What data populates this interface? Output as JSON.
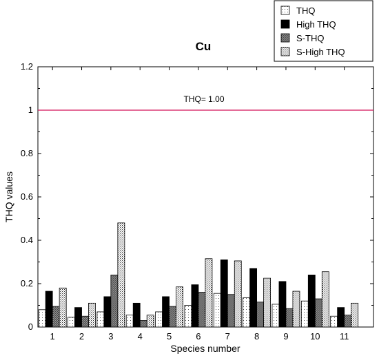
{
  "chart_data": {
    "type": "bar",
    "title": "Cu",
    "xlabel": "Species number",
    "ylabel": "THQ values",
    "ylim": [
      0,
      1.2
    ],
    "yticks": [
      "0",
      "0.2",
      "0.4",
      "0.6",
      "0.8",
      "1",
      "1.2"
    ],
    "categories": [
      "1",
      "2",
      "3",
      "4",
      "5",
      "6",
      "7",
      "8",
      "9",
      "10",
      "11"
    ],
    "series": [
      {
        "name": "THQ",
        "pattern": "dots-light",
        "values": [
          0.08,
          0.045,
          0.07,
          0.055,
          0.07,
          0.1,
          0.155,
          0.135,
          0.105,
          0.12,
          0.05
        ]
      },
      {
        "name": "High THQ",
        "pattern": "solid-black",
        "values": [
          0.165,
          0.09,
          0.14,
          0.11,
          0.14,
          0.195,
          0.31,
          0.27,
          0.21,
          0.24,
          0.09
        ]
      },
      {
        "name": "S-THQ",
        "pattern": "crosshatch",
        "values": [
          0.095,
          0.05,
          0.24,
          0.03,
          0.095,
          0.16,
          0.15,
          0.115,
          0.085,
          0.13,
          0.055
        ]
      },
      {
        "name": "S-High THQ",
        "pattern": "dots-dense",
        "values": [
          0.18,
          0.11,
          0.48,
          0.055,
          0.185,
          0.315,
          0.305,
          0.225,
          0.165,
          0.255,
          0.11
        ]
      }
    ],
    "reference_line": {
      "value": 1.0,
      "label": "THQ= 1.00",
      "color": "#d4145a"
    },
    "legend_position": "top-right",
    "grid": false
  }
}
